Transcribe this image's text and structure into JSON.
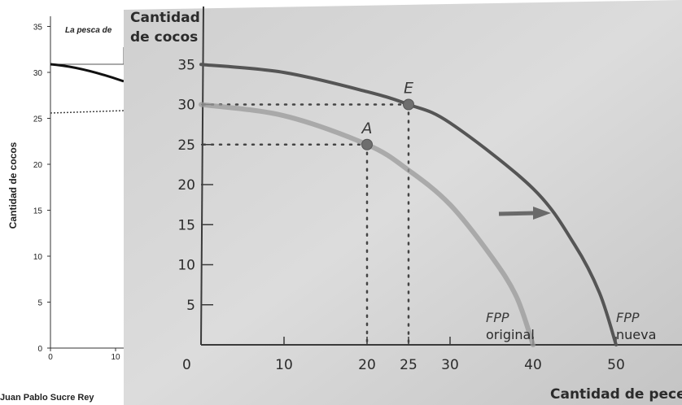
{
  "background_chart": {
    "ylabel": "Cantidad de cocos",
    "yticks": [
      "0",
      "5",
      "10",
      "15",
      "20",
      "25",
      "30",
      "35"
    ],
    "xticks": [
      "0",
      "10"
    ],
    "annotation": "La pesca de",
    "footer_text": "Juan Pablo Sucre Rey"
  },
  "chart_data": {
    "type": "line",
    "ylabel": "Cantidad de cocos",
    "xlabel": "Cantidad de peces",
    "xlim": [
      0,
      55
    ],
    "ylim": [
      0,
      40
    ],
    "xticks": [
      "0",
      "10",
      "20",
      "25",
      "30",
      "40",
      "50"
    ],
    "yticks": [
      "5",
      "10",
      "15",
      "20",
      "25",
      "30",
      "35"
    ],
    "series": [
      {
        "name": "FPP original",
        "label_line1": "FPP",
        "label_line2": "original",
        "color": "#9a9a9a",
        "x": [
          0,
          10,
          20,
          25,
          30,
          35,
          38,
          40
        ],
        "y": [
          30,
          28.6,
          25,
          21.8,
          17.5,
          11,
          6,
          0
        ]
      },
      {
        "name": "FPP nueva",
        "label_line1": "FPP",
        "label_line2": "nueva",
        "color": "#555555",
        "x": [
          0,
          10,
          20,
          25,
          30,
          40,
          45,
          48,
          50
        ],
        "y": [
          35,
          34,
          31.6,
          30,
          27.7,
          19.5,
          12.5,
          6.5,
          0
        ]
      }
    ],
    "points": [
      {
        "label": "A",
        "x": 20,
        "y": 25
      },
      {
        "label": "E",
        "x": 25,
        "y": 30
      }
    ],
    "arrow": {
      "direction": "right"
    }
  }
}
